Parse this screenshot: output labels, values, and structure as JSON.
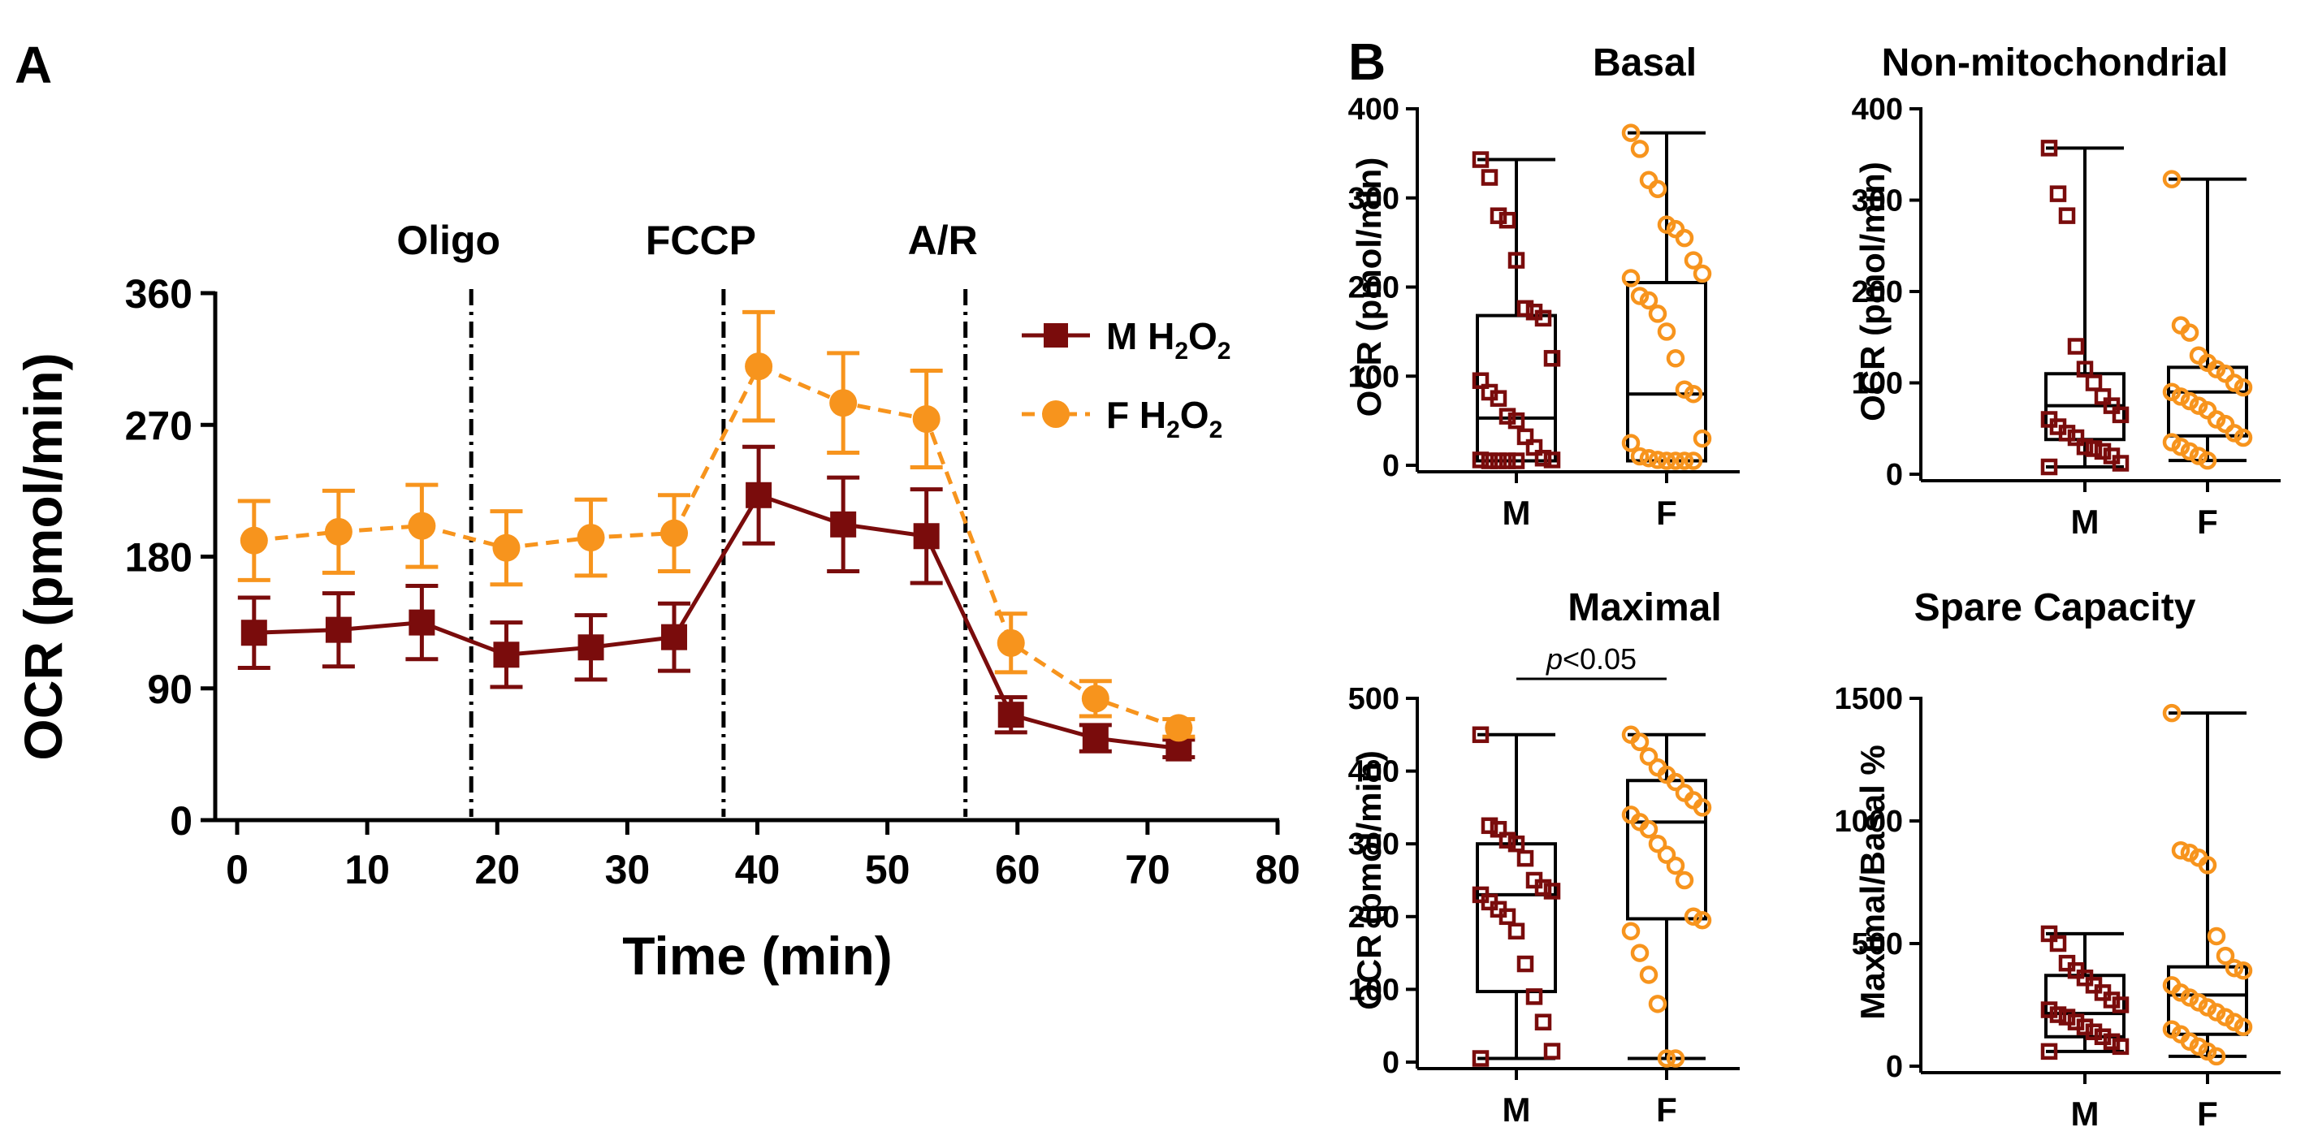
{
  "figure": {
    "panel_a_label": "A",
    "panel_b_label": "B"
  },
  "chart_data": [
    {
      "type": "line",
      "panel": "A",
      "xlabel": "Time (min)",
      "ylabel": "OCR (pmol/min)",
      "xlim": [
        0,
        80
      ],
      "ylim": [
        0,
        360
      ],
      "xticks": [
        0,
        10,
        20,
        30,
        40,
        50,
        60,
        70,
        80
      ],
      "yticks": [
        0,
        90,
        180,
        270,
        360
      ],
      "x": [
        1.3,
        7.8,
        14.2,
        20.7,
        27.2,
        33.6,
        40.1,
        46.6,
        53.0,
        59.5,
        66.0,
        72.4
      ],
      "series": [
        {
          "name": "M H2O2",
          "legend_main": "M H",
          "legend_s1": "2",
          "legend_mid": "O",
          "legend_s2": "2",
          "color": "#7a0c0c",
          "marker": "square",
          "dash": "solid",
          "values": [
            128,
            130,
            135,
            113,
            118,
            125,
            222,
            202,
            194,
            72,
            56,
            49
          ],
          "errors": [
            24,
            25,
            25,
            22,
            22,
            23,
            33,
            32,
            32,
            12,
            9,
            6
          ]
        },
        {
          "name": "F H2O2",
          "legend_main": "F H",
          "legend_s1": "2",
          "legend_mid": "O",
          "legend_s2": "2",
          "color": "#f7941d",
          "marker": "circle",
          "dash": "dashed",
          "values": [
            191,
            197,
            201,
            186,
            193,
            196,
            310,
            285,
            274,
            121,
            83,
            63
          ],
          "errors": [
            27,
            28,
            28,
            25,
            26,
            26,
            37,
            34,
            33,
            20,
            12,
            6
          ]
        }
      ],
      "annotations": [
        {
          "label": "Oligo",
          "x": 18.0
        },
        {
          "label": "FCCP",
          "x": 37.4
        },
        {
          "label": "A/R",
          "x": 56.0
        }
      ]
    },
    {
      "type": "boxplot",
      "panel": "B",
      "title": "Basal",
      "ylabel": "OCR (pmol/min)",
      "ylim": [
        0,
        400
      ],
      "yticks": [
        0,
        100,
        200,
        300,
        400
      ],
      "categories": [
        "M",
        "F"
      ],
      "boxes": [
        {
          "name": "M",
          "color": "#7a0c0c",
          "min": 5,
          "q1": 5,
          "median": 53,
          "q3": 168,
          "max": 343,
          "points": [
            343,
            323,
            280,
            275,
            230,
            176,
            172,
            165,
            120,
            95,
            82,
            75,
            55,
            50,
            32,
            20,
            8,
            6,
            6,
            5,
            5,
            5,
            5
          ]
        },
        {
          "name": "F",
          "color": "#f7941d",
          "min": 5,
          "q1": 5,
          "median": 80,
          "q3": 205,
          "max": 373,
          "points": [
            373,
            355,
            320,
            310,
            270,
            265,
            255,
            230,
            215,
            210,
            190,
            185,
            170,
            150,
            120,
            85,
            80,
            30,
            25,
            10,
            8,
            6,
            5,
            5,
            5,
            5
          ]
        }
      ]
    },
    {
      "type": "boxplot",
      "panel": "B",
      "title": "Non-mitochondrial",
      "ylabel": "OCR (pmol/min)",
      "ylim": [
        0,
        400
      ],
      "yticks": [
        0,
        100,
        200,
        300,
        400
      ],
      "categories": [
        "M",
        "F"
      ],
      "boxes": [
        {
          "name": "M",
          "color": "#7a0c0c",
          "min": 8,
          "q1": 38,
          "median": 75,
          "q3": 110,
          "max": 357,
          "points": [
            357,
            307,
            283,
            140,
            115,
            100,
            85,
            75,
            65,
            60,
            52,
            45,
            40,
            30,
            28,
            25,
            20,
            12,
            8
          ]
        },
        {
          "name": "F",
          "color": "#f7941d",
          "min": 15,
          "q1": 42,
          "median": 90,
          "q3": 117,
          "max": 323,
          "points": [
            323,
            163,
            155,
            130,
            122,
            115,
            110,
            100,
            95,
            90,
            85,
            80,
            75,
            70,
            60,
            55,
            45,
            40,
            35,
            30,
            25,
            20,
            15
          ]
        }
      ]
    },
    {
      "type": "boxplot",
      "panel": "B",
      "title": "Maximal",
      "ylabel": "OCR (pmol/min)",
      "ylim": [
        0,
        500
      ],
      "yticks": [
        0,
        100,
        200,
        300,
        400,
        500
      ],
      "categories": [
        "M",
        "F"
      ],
      "significance": {
        "p_prefix": "p",
        "p_rest": "<0.05"
      },
      "boxes": [
        {
          "name": "M",
          "color": "#7a0c0c",
          "min": 5,
          "q1": 97,
          "median": 230,
          "q3": 300,
          "max": 450,
          "points": [
            450,
            325,
            320,
            305,
            300,
            280,
            250,
            240,
            235,
            230,
            220,
            210,
            200,
            180,
            135,
            90,
            55,
            15,
            5
          ]
        },
        {
          "name": "F",
          "color": "#f7941d",
          "min": 5,
          "q1": 197,
          "median": 330,
          "q3": 387,
          "max": 450,
          "points": [
            450,
            440,
            420,
            405,
            395,
            385,
            370,
            360,
            350,
            340,
            330,
            320,
            300,
            285,
            270,
            250,
            200,
            195,
            180,
            150,
            120,
            80,
            5,
            5
          ]
        }
      ]
    },
    {
      "type": "boxplot",
      "panel": "B",
      "title": "Spare Capacity",
      "ylabel": "Maximal/Basal %",
      "ylim": [
        0,
        1500
      ],
      "yticks": [
        0,
        500,
        1000,
        1500
      ],
      "categories": [
        "M",
        "F"
      ],
      "boxes": [
        {
          "name": "M",
          "color": "#7a0c0c",
          "min": 60,
          "q1": 120,
          "median": 215,
          "q3": 370,
          "max": 540,
          "points": [
            540,
            500,
            420,
            390,
            360,
            330,
            300,
            270,
            250,
            230,
            210,
            200,
            180,
            160,
            140,
            120,
            100,
            80,
            60
          ]
        },
        {
          "name": "F",
          "color": "#f7941d",
          "min": 40,
          "q1": 130,
          "median": 290,
          "q3": 405,
          "max": 1440,
          "points": [
            1440,
            880,
            870,
            850,
            820,
            530,
            450,
            400,
            390,
            330,
            300,
            280,
            260,
            240,
            220,
            200,
            180,
            160,
            150,
            130,
            100,
            80,
            60,
            40
          ]
        }
      ]
    }
  ]
}
